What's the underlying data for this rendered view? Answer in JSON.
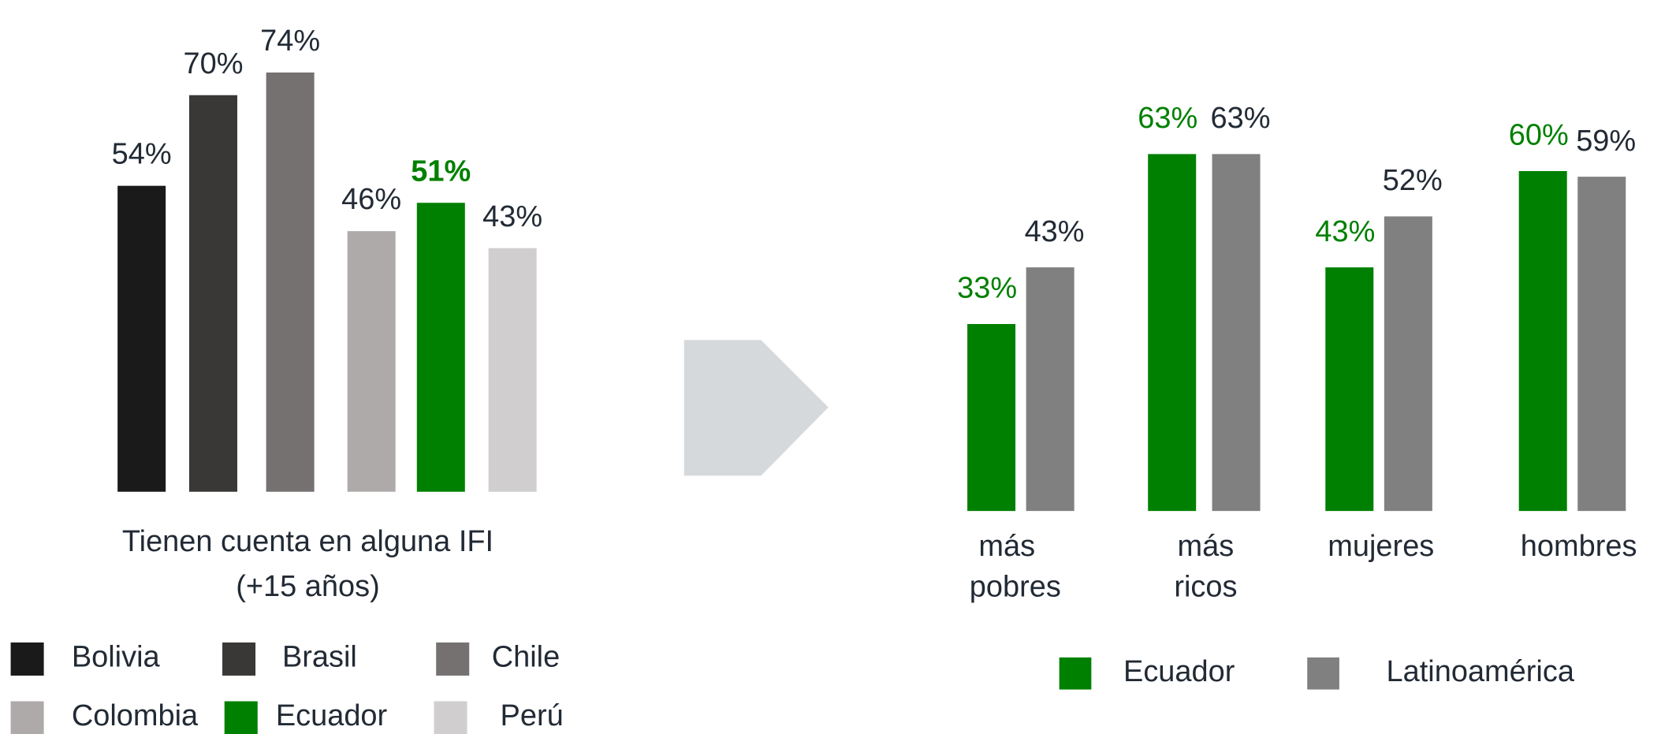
{
  "chart_data": [
    {
      "type": "bar",
      "title": "Tienen cuenta en alguna IFI",
      "subtitle": "(+15 años)",
      "categories": [
        "Bolivia",
        "Brasil",
        "Chile",
        "Colombia",
        "Ecuador",
        "Perú"
      ],
      "values": [
        54,
        70,
        74,
        46,
        51,
        43
      ],
      "value_labels": [
        "54%",
        "70%",
        "74%",
        "46%",
        "51%",
        "43%"
      ],
      "colors": [
        "#1a1a1a",
        "#3a3837",
        "#767171",
        "#aeaaaa",
        "#008000",
        "#d0cece"
      ],
      "ylim": [
        0,
        100
      ]
    },
    {
      "type": "grouped_bar",
      "categories": [
        "más pobres",
        "más ricos",
        "mujeres",
        "hombres"
      ],
      "series": [
        {
          "name": "Ecuador",
          "color": "#008000",
          "values": [
            33,
            63,
            43,
            60
          ],
          "value_labels": [
            "33%",
            "63%",
            "43%",
            "60%"
          ]
        },
        {
          "name": "Latinoamérica",
          "color": "#808080",
          "values": [
            43,
            63,
            52,
            59
          ],
          "value_labels": [
            "43%",
            "63%",
            "52%",
            "59%"
          ]
        }
      ],
      "ylim": [
        0,
        100
      ]
    }
  ]
}
